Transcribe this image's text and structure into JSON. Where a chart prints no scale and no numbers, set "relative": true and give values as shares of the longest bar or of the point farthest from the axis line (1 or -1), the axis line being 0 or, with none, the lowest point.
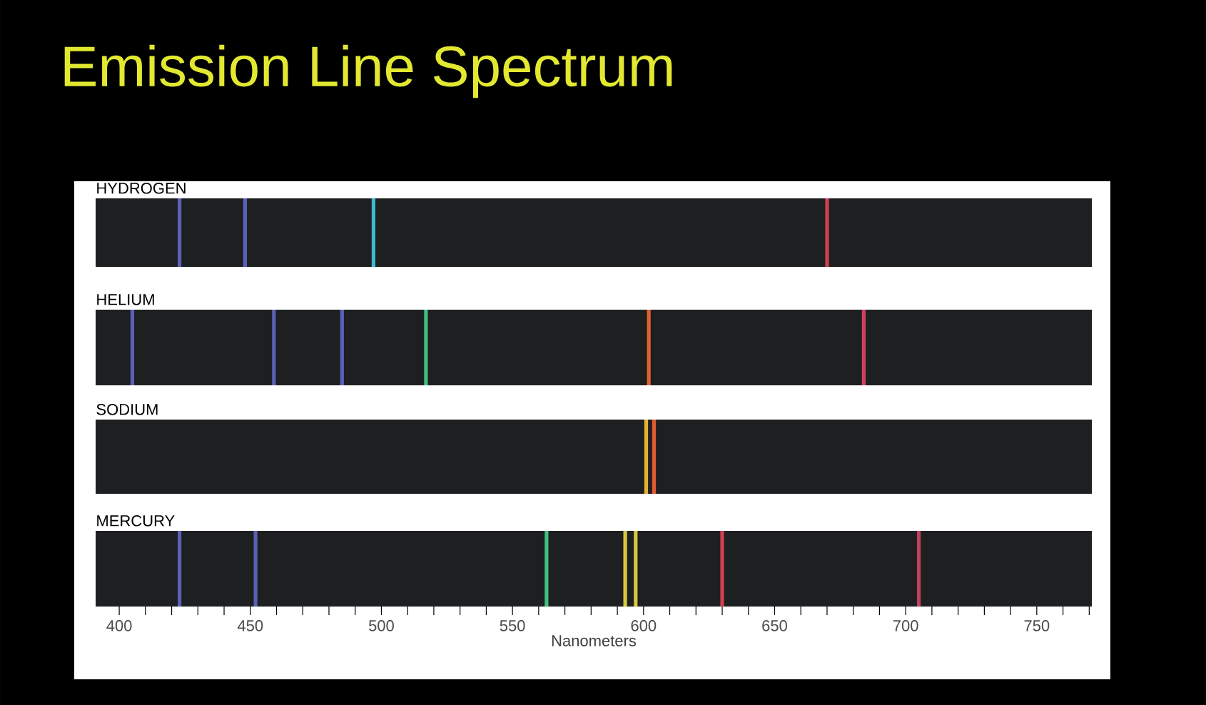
{
  "chart_data": [
    {
      "type": "bar",
      "title": "Emission Line Spectrum",
      "subtitle": "HYDROGEN",
      "x": [
        423,
        448,
        497,
        670
      ],
      "values": [
        1,
        1,
        1,
        1
      ],
      "relative": true,
      "colors": [
        "#5a60b8",
        "#5a60b8",
        "#40b8d0",
        "#d04050"
      ],
      "xlim": [
        391,
        771
      ],
      "tick_labels": false
    },
    {
      "type": "bar",
      "title": "HELIUM",
      "x": [
        405,
        459,
        485,
        517,
        602,
        684
      ],
      "values": [
        1,
        1,
        1,
        1,
        1,
        1
      ],
      "relative": true,
      "colors": [
        "#5a60b8",
        "#5a60b8",
        "#5a60b8",
        "#40c080",
        "#e06030",
        "#d04060"
      ],
      "xlim": [
        391,
        771
      ],
      "tick_labels": false
    },
    {
      "type": "bar",
      "title": "SODIUM",
      "x": [
        601,
        604
      ],
      "values": [
        1,
        1
      ],
      "relative": true,
      "colors": [
        "#e8b030",
        "#e05a30"
      ],
      "xlim": [
        391,
        771
      ],
      "tick_labels": false
    },
    {
      "type": "bar",
      "title": "MERCURY",
      "xlabel": "Nanometers",
      "x": [
        423,
        452,
        563,
        593,
        597,
        630,
        705
      ],
      "values": [
        1,
        1,
        1,
        1,
        1,
        1,
        1
      ],
      "relative": true,
      "colors": [
        "#5a60b8",
        "#5a60b8",
        "#40c080",
        "#d8c840",
        "#d8c840",
        "#d04050",
        "#c04060"
      ],
      "xlim": [
        391,
        771
      ],
      "tick_labels": "x",
      "xticks": [
        400,
        {
          "value": 410,
          "label": null
        },
        {
          "value": 420,
          "label": null
        },
        {
          "value": 430,
          "label": null
        },
        {
          "value": 440,
          "label": null
        },
        450,
        {
          "value": 460,
          "label": null
        },
        {
          "value": 470,
          "label": null
        },
        {
          "value": 480,
          "label": null
        },
        {
          "value": 490,
          "label": null
        },
        500,
        {
          "value": 510,
          "label": null
        },
        {
          "value": 520,
          "label": null
        },
        {
          "value": 530,
          "label": null
        },
        {
          "value": 540,
          "label": null
        },
        550,
        {
          "value": 560,
          "label": null
        },
        {
          "value": 570,
          "label": null
        },
        {
          "value": 580,
          "label": null
        },
        {
          "value": 590,
          "label": null
        },
        600,
        {
          "value": 610,
          "label": null
        },
        {
          "value": 620,
          "label": null
        },
        {
          "value": 630,
          "label": null
        },
        {
          "value": 640,
          "label": null
        },
        650,
        {
          "value": 660,
          "label": null
        },
        {
          "value": 670,
          "label": null
        },
        {
          "value": 680,
          "label": null
        },
        {
          "value": 690,
          "label": null
        },
        700,
        {
          "value": 710,
          "label": null
        },
        {
          "value": 720,
          "label": null
        },
        {
          "value": 730,
          "label": null
        },
        {
          "value": 740,
          "label": null
        },
        750,
        {
          "value": 760,
          "label": null
        },
        {
          "value": 770,
          "label": null
        }
      ]
    }
  ]
}
